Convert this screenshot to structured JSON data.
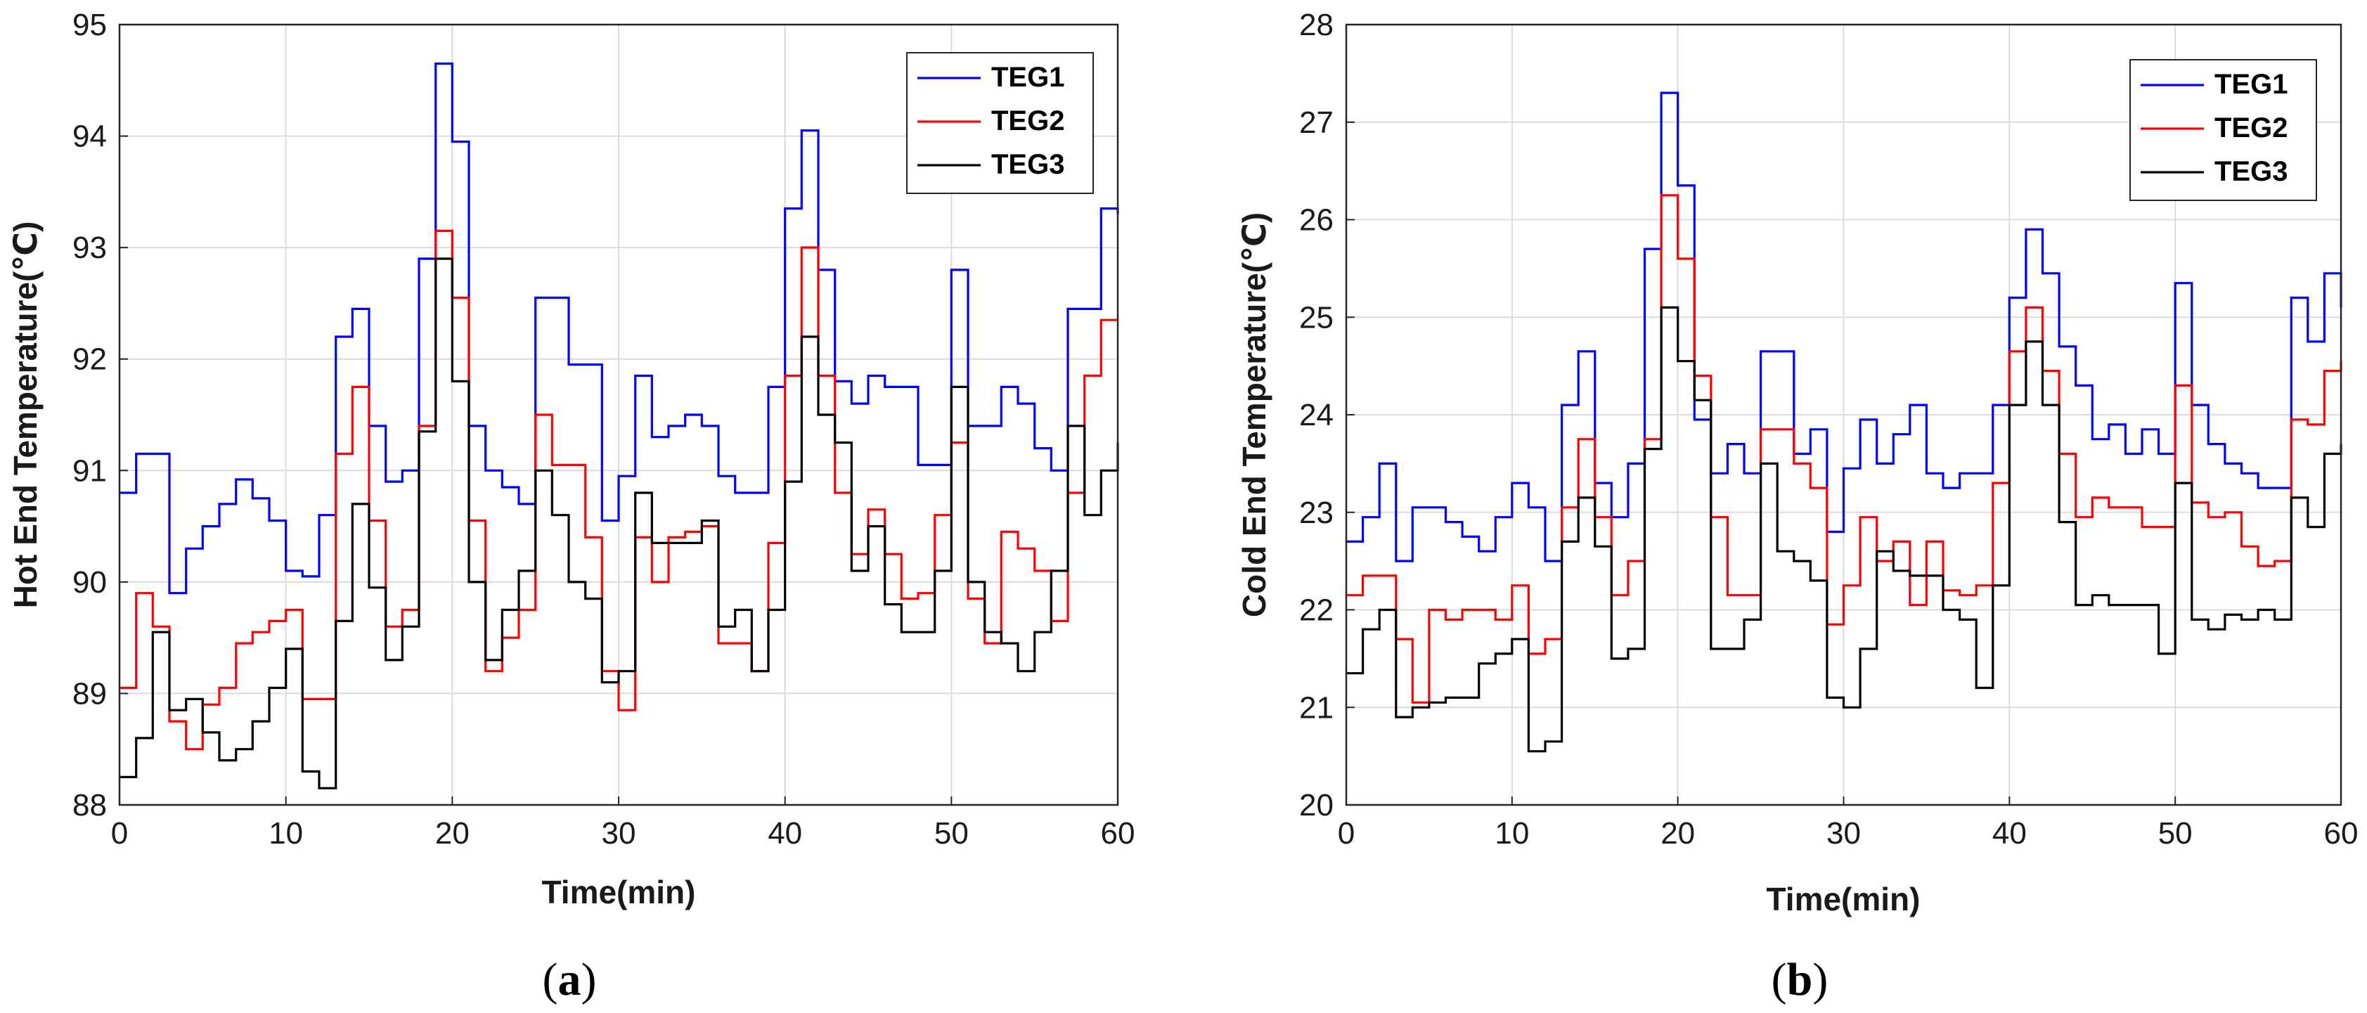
{
  "chart_data": [
    {
      "type": "line",
      "panel_label": "a",
      "xlabel": "Time(min)",
      "ylabel": "Hot End Temperature(℃)",
      "xlim": [
        0,
        60
      ],
      "ylim": [
        88,
        95
      ],
      "xticks": [
        0,
        10,
        20,
        30,
        40,
        50,
        60
      ],
      "yticks": [
        88,
        89,
        90,
        91,
        92,
        93,
        94,
        95
      ],
      "grid": true,
      "legend_position": "top-right",
      "series": [
        {
          "name": "TEG1",
          "color": "#0000ff",
          "x": [
            0,
            1,
            2,
            3,
            4,
            5,
            6,
            7,
            8,
            9,
            10,
            11,
            12,
            13,
            14,
            15,
            16,
            17,
            18,
            19,
            20,
            21,
            22,
            23,
            24,
            25,
            26,
            27,
            28,
            29,
            30,
            31,
            32,
            33,
            34,
            35,
            36,
            37,
            38,
            39,
            40,
            41,
            42,
            43,
            44,
            45,
            46,
            47,
            48,
            49,
            50,
            51,
            52,
            53,
            54,
            55,
            56,
            57,
            58,
            59,
            60
          ],
          "y": [
            90.8,
            91.15,
            91.15,
            89.9,
            90.3,
            90.5,
            90.7,
            90.92,
            90.75,
            90.55,
            90.1,
            90.05,
            90.6,
            92.2,
            92.45,
            91.4,
            90.9,
            91.0,
            92.9,
            94.65,
            93.95,
            91.4,
            91.0,
            90.85,
            90.7,
            92.55,
            92.55,
            91.95,
            91.95,
            90.55,
            90.95,
            91.85,
            91.3,
            91.4,
            91.5,
            91.4,
            90.95,
            90.8,
            90.8,
            91.75,
            93.35,
            94.05,
            92.8,
            91.8,
            91.6,
            91.85,
            91.75,
            91.75,
            91.05,
            91.05,
            92.8,
            91.4,
            91.4,
            91.75,
            91.6,
            91.2,
            91.0,
            92.45,
            92.45,
            93.35,
            93.3
          ]
        },
        {
          "name": "TEG2",
          "color": "#ff0000",
          "x": [
            0,
            1,
            2,
            3,
            4,
            5,
            6,
            7,
            8,
            9,
            10,
            11,
            12,
            13,
            14,
            15,
            16,
            17,
            18,
            19,
            20,
            21,
            22,
            23,
            24,
            25,
            26,
            27,
            28,
            29,
            30,
            31,
            32,
            33,
            34,
            35,
            36,
            37,
            38,
            39,
            40,
            41,
            42,
            43,
            44,
            45,
            46,
            47,
            48,
            49,
            50,
            51,
            52,
            53,
            54,
            55,
            56,
            57,
            58,
            59,
            60
          ],
          "y": [
            89.05,
            89.9,
            89.6,
            88.75,
            88.5,
            88.9,
            89.05,
            89.45,
            89.55,
            89.65,
            89.75,
            88.95,
            88.95,
            91.15,
            91.75,
            90.55,
            89.6,
            89.75,
            91.4,
            93.15,
            92.55,
            90.55,
            89.2,
            89.5,
            89.75,
            91.5,
            91.05,
            91.05,
            90.4,
            89.2,
            88.85,
            90.4,
            90.0,
            90.4,
            90.45,
            90.5,
            89.45,
            89.45,
            89.2,
            90.35,
            91.85,
            93.0,
            91.85,
            90.8,
            90.25,
            90.65,
            90.25,
            89.85,
            89.9,
            90.6,
            91.25,
            89.85,
            89.45,
            90.45,
            90.3,
            90.1,
            89.65,
            90.8,
            91.85,
            92.35,
            92.35
          ]
        },
        {
          "name": "TEG3",
          "color": "#000000",
          "x": [
            0,
            1,
            2,
            3,
            4,
            5,
            6,
            7,
            8,
            9,
            10,
            11,
            12,
            13,
            14,
            15,
            16,
            17,
            18,
            19,
            20,
            21,
            22,
            23,
            24,
            25,
            26,
            27,
            28,
            29,
            30,
            31,
            32,
            33,
            34,
            35,
            36,
            37,
            38,
            39,
            40,
            41,
            42,
            43,
            44,
            45,
            46,
            47,
            48,
            49,
            50,
            51,
            52,
            53,
            54,
            55,
            56,
            57,
            58,
            59,
            60
          ],
          "y": [
            88.25,
            88.6,
            89.55,
            88.85,
            88.95,
            88.65,
            88.4,
            88.5,
            88.75,
            89.05,
            89.4,
            88.3,
            88.15,
            89.65,
            90.7,
            89.95,
            89.3,
            89.6,
            91.35,
            92.9,
            91.8,
            90.0,
            89.3,
            89.75,
            90.1,
            91.0,
            90.6,
            90.0,
            89.85,
            89.1,
            89.2,
            90.8,
            90.35,
            90.35,
            90.35,
            90.55,
            89.6,
            89.75,
            89.2,
            89.75,
            90.9,
            92.2,
            91.5,
            91.25,
            90.1,
            90.5,
            89.8,
            89.55,
            89.55,
            90.1,
            91.75,
            90.0,
            89.55,
            89.45,
            89.2,
            89.55,
            90.1,
            91.4,
            90.6,
            91.0,
            91.25
          ]
        }
      ]
    },
    {
      "type": "line",
      "panel_label": "b",
      "xlabel": "Time(min)",
      "ylabel": "Cold End Temperature(℃)",
      "xlim": [
        0,
        60
      ],
      "ylim": [
        20,
        28
      ],
      "xticks": [
        0,
        10,
        20,
        30,
        40,
        50,
        60
      ],
      "yticks": [
        20,
        21,
        22,
        23,
        24,
        25,
        26,
        27,
        28
      ],
      "grid": true,
      "legend_position": "top-right",
      "series": [
        {
          "name": "TEG1",
          "color": "#0000ff",
          "x": [
            0,
            1,
            2,
            3,
            4,
            5,
            6,
            7,
            8,
            9,
            10,
            11,
            12,
            13,
            14,
            15,
            16,
            17,
            18,
            19,
            20,
            21,
            22,
            23,
            24,
            25,
            26,
            27,
            28,
            29,
            30,
            31,
            32,
            33,
            34,
            35,
            36,
            37,
            38,
            39,
            40,
            41,
            42,
            43,
            44,
            45,
            46,
            47,
            48,
            49,
            50,
            51,
            52,
            53,
            54,
            55,
            56,
            57,
            58,
            59,
            60
          ],
          "y": [
            22.7,
            22.95,
            23.5,
            22.5,
            23.05,
            23.05,
            22.9,
            22.75,
            22.6,
            22.95,
            23.3,
            23.05,
            22.5,
            24.1,
            24.65,
            23.3,
            22.95,
            23.5,
            25.7,
            27.3,
            26.35,
            23.95,
            23.4,
            23.7,
            23.4,
            24.65,
            24.65,
            23.6,
            23.85,
            22.8,
            23.45,
            23.95,
            23.5,
            23.8,
            24.1,
            23.4,
            23.25,
            23.4,
            23.4,
            24.1,
            25.2,
            25.9,
            25.45,
            24.7,
            24.3,
            23.75,
            23.9,
            23.6,
            23.85,
            23.6,
            25.35,
            24.1,
            23.7,
            23.5,
            23.4,
            23.25,
            23.25,
            25.2,
            24.75,
            25.45,
            25.1
          ]
        },
        {
          "name": "TEG2",
          "color": "#ff0000",
          "x": [
            0,
            1,
            2,
            3,
            4,
            5,
            6,
            7,
            8,
            9,
            10,
            11,
            12,
            13,
            14,
            15,
            16,
            17,
            18,
            19,
            20,
            21,
            22,
            23,
            24,
            25,
            26,
            27,
            28,
            29,
            30,
            31,
            32,
            33,
            34,
            35,
            36,
            37,
            38,
            39,
            40,
            41,
            42,
            43,
            44,
            45,
            46,
            47,
            48,
            49,
            50,
            51,
            52,
            53,
            54,
            55,
            56,
            57,
            58,
            59,
            60
          ],
          "y": [
            22.15,
            22.35,
            22.35,
            21.7,
            21.05,
            22.0,
            21.9,
            22.0,
            22.0,
            21.9,
            22.25,
            21.55,
            21.7,
            23.05,
            23.75,
            22.95,
            22.15,
            22.5,
            23.75,
            26.25,
            25.6,
            24.4,
            22.95,
            22.15,
            22.15,
            23.85,
            23.85,
            23.5,
            23.25,
            21.85,
            22.25,
            22.95,
            22.5,
            22.7,
            22.05,
            22.7,
            22.2,
            22.15,
            22.25,
            23.3,
            24.65,
            25.1,
            24.45,
            23.6,
            22.95,
            23.15,
            23.05,
            23.05,
            22.85,
            22.85,
            24.3,
            23.1,
            22.95,
            23.0,
            22.65,
            22.45,
            22.5,
            23.95,
            23.9,
            24.45,
            24.55
          ]
        },
        {
          "name": "TEG3",
          "color": "#000000",
          "x": [
            0,
            1,
            2,
            3,
            4,
            5,
            6,
            7,
            8,
            9,
            10,
            11,
            12,
            13,
            14,
            15,
            16,
            17,
            18,
            19,
            20,
            21,
            22,
            23,
            24,
            25,
            26,
            27,
            28,
            29,
            30,
            31,
            32,
            33,
            34,
            35,
            36,
            37,
            38,
            39,
            40,
            41,
            42,
            43,
            44,
            45,
            46,
            47,
            48,
            49,
            50,
            51,
            52,
            53,
            54,
            55,
            56,
            57,
            58,
            59,
            60
          ],
          "y": [
            21.35,
            21.8,
            22.0,
            20.9,
            21.0,
            21.05,
            21.1,
            21.1,
            21.45,
            21.55,
            21.7,
            20.55,
            20.65,
            22.7,
            23.15,
            22.65,
            21.5,
            21.6,
            23.65,
            25.1,
            24.55,
            24.15,
            21.6,
            21.6,
            21.9,
            23.5,
            22.6,
            22.5,
            22.3,
            21.1,
            21.0,
            21.6,
            22.6,
            22.4,
            22.35,
            22.35,
            22.0,
            21.9,
            21.2,
            22.25,
            24.1,
            24.75,
            24.1,
            22.9,
            22.05,
            22.15,
            22.05,
            22.05,
            22.05,
            21.55,
            23.3,
            21.9,
            21.8,
            21.95,
            21.9,
            22.0,
            21.9,
            23.15,
            22.85,
            23.6,
            23.7
          ]
        }
      ]
    }
  ]
}
